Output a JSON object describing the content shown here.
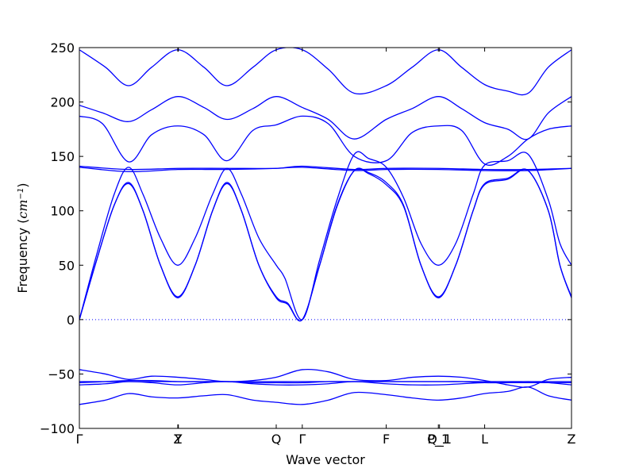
{
  "chart_data": {
    "type": "line",
    "title": "",
    "xlabel": "Wave vector",
    "ylabel": "Frequency ($cm^{-1}$)",
    "ylabel_parts": {
      "prefix": "Frequency (",
      "unit_base": "cm",
      "unit_exp": "−1",
      "suffix": ")"
    },
    "xlim": [
      0,
      8.5
    ],
    "ylim": [
      -100,
      250
    ],
    "grid": false,
    "legend": "none",
    "line_color": "#0000ff",
    "zero_line": {
      "y": 0,
      "style": "dotted"
    },
    "yticks": [
      -100,
      -50,
      0,
      50,
      100,
      150,
      200,
      250
    ],
    "ytick_labels": [
      "−100",
      "−50",
      "0",
      "50",
      "100",
      "150",
      "200",
      "250"
    ],
    "xticks": [
      {
        "x": 0,
        "label": "Γ"
      },
      {
        "x": 1.7,
        "label": "Z"
      },
      {
        "x": 1.71,
        "label": "Y"
      },
      {
        "x": 3.4,
        "label": "Q"
      },
      {
        "x": 3.85,
        "label": "Γ"
      },
      {
        "x": 5.3,
        "label": "F"
      },
      {
        "x": 6.2,
        "label": "P_1"
      },
      {
        "x": 6.22,
        "label": "Q_1"
      },
      {
        "x": 7.0,
        "label": "L"
      },
      {
        "x": 8.5,
        "label": "Z"
      }
    ],
    "series": [
      {
        "values": [
          [
            0,
            248
          ],
          [
            0.45,
            232
          ],
          [
            0.85,
            215
          ],
          [
            1.25,
            232
          ],
          [
            1.7,
            248
          ],
          [
            2.15,
            232
          ],
          [
            2.55,
            215
          ],
          [
            3.0,
            232
          ],
          [
            3.4,
            248
          ],
          [
            3.85,
            248
          ],
          [
            4.3,
            230
          ],
          [
            4.75,
            208
          ],
          [
            5.3,
            215
          ],
          [
            5.75,
            232
          ],
          [
            6.2,
            248
          ],
          [
            6.6,
            232
          ],
          [
            7.0,
            216
          ],
          [
            7.4,
            210
          ],
          [
            7.75,
            208
          ],
          [
            8.1,
            232
          ],
          [
            8.5,
            248
          ]
        ]
      },
      {
        "values": [
          [
            0,
            197
          ],
          [
            0.4,
            190
          ],
          [
            0.85,
            182
          ],
          [
            1.25,
            193
          ],
          [
            1.7,
            205
          ],
          [
            2.15,
            195
          ],
          [
            2.55,
            184
          ],
          [
            3.0,
            194
          ],
          [
            3.4,
            205
          ],
          [
            3.85,
            195
          ],
          [
            4.3,
            184
          ],
          [
            4.75,
            166
          ],
          [
            5.3,
            184
          ],
          [
            5.75,
            194
          ],
          [
            6.2,
            205
          ],
          [
            6.6,
            194
          ],
          [
            7.0,
            181
          ],
          [
            7.4,
            175
          ],
          [
            7.75,
            166
          ],
          [
            8.1,
            190
          ],
          [
            8.5,
            205
          ]
        ]
      },
      {
        "values": [
          [
            0,
            187
          ],
          [
            0.4,
            180
          ],
          [
            0.85,
            145
          ],
          [
            1.25,
            170
          ],
          [
            1.7,
            178
          ],
          [
            2.15,
            170
          ],
          [
            2.55,
            146
          ],
          [
            3.0,
            174
          ],
          [
            3.4,
            179
          ],
          [
            3.85,
            187
          ],
          [
            4.3,
            180
          ],
          [
            4.75,
            150
          ],
          [
            5.3,
            146
          ],
          [
            5.75,
            172
          ],
          [
            6.2,
            178
          ],
          [
            6.6,
            174
          ],
          [
            7.0,
            143
          ],
          [
            7.4,
            150
          ],
          [
            7.75,
            166
          ],
          [
            8.1,
            175
          ],
          [
            8.5,
            178
          ]
        ]
      },
      {
        "values": [
          [
            0,
            141
          ],
          [
            0.85,
            138
          ],
          [
            1.7,
            139
          ],
          [
            2.55,
            139
          ],
          [
            3.4,
            139
          ],
          [
            3.85,
            141
          ],
          [
            4.75,
            138
          ],
          [
            5.3,
            139
          ],
          [
            6.2,
            139
          ],
          [
            7.0,
            138
          ],
          [
            7.75,
            138
          ],
          [
            8.5,
            139
          ]
        ]
      },
      {
        "values": [
          [
            0,
            140
          ],
          [
            0.85,
            136
          ],
          [
            1.7,
            138
          ],
          [
            2.55,
            138
          ],
          [
            3.4,
            139
          ],
          [
            3.85,
            140
          ],
          [
            4.75,
            137
          ],
          [
            5.3,
            138
          ],
          [
            6.2,
            138
          ],
          [
            7.0,
            137
          ],
          [
            7.75,
            137
          ],
          [
            8.5,
            139
          ]
        ]
      },
      {
        "values": [
          [
            0,
            0
          ],
          [
            0.3,
            60
          ],
          [
            0.6,
            115
          ],
          [
            0.85,
            140
          ],
          [
            1.1,
            115
          ],
          [
            1.4,
            75
          ],
          [
            1.7,
            50
          ],
          [
            2.0,
            75
          ],
          [
            2.3,
            115
          ],
          [
            2.55,
            139
          ],
          [
            2.8,
            115
          ],
          [
            3.1,
            75
          ],
          [
            3.4,
            50
          ],
          [
            3.55,
            38
          ],
          [
            3.85,
            0
          ],
          [
            4.15,
            55
          ],
          [
            4.45,
            110
          ],
          [
            4.75,
            152
          ],
          [
            5.0,
            148
          ],
          [
            5.3,
            140
          ],
          [
            5.6,
            112
          ],
          [
            5.9,
            70
          ],
          [
            6.2,
            50
          ],
          [
            6.5,
            70
          ],
          [
            6.8,
            115
          ],
          [
            7.0,
            142
          ],
          [
            7.4,
            146
          ],
          [
            7.75,
            152
          ],
          [
            8.1,
            110
          ],
          [
            8.3,
            70
          ],
          [
            8.5,
            50
          ]
        ]
      },
      {
        "values": [
          [
            0,
            0
          ],
          [
            0.3,
            55
          ],
          [
            0.6,
            105
          ],
          [
            0.85,
            125
          ],
          [
            1.1,
            100
          ],
          [
            1.4,
            50
          ],
          [
            1.7,
            21
          ],
          [
            2.0,
            50
          ],
          [
            2.3,
            100
          ],
          [
            2.55,
            126
          ],
          [
            2.8,
            100
          ],
          [
            3.1,
            50
          ],
          [
            3.4,
            21
          ],
          [
            3.6,
            15
          ],
          [
            3.85,
            0
          ],
          [
            4.15,
            50
          ],
          [
            4.45,
            105
          ],
          [
            4.75,
            137
          ],
          [
            5.0,
            135
          ],
          [
            5.3,
            126
          ],
          [
            5.6,
            105
          ],
          [
            5.9,
            50
          ],
          [
            6.2,
            21
          ],
          [
            6.5,
            50
          ],
          [
            6.8,
            100
          ],
          [
            7.0,
            125
          ],
          [
            7.4,
            130
          ],
          [
            7.75,
            137
          ],
          [
            8.1,
            100
          ],
          [
            8.3,
            50
          ],
          [
            8.5,
            21
          ]
        ]
      },
      {
        "values": [
          [
            0,
            0
          ],
          [
            0.3,
            55
          ],
          [
            0.6,
            105
          ],
          [
            0.85,
            126
          ],
          [
            1.1,
            100
          ],
          [
            1.4,
            50
          ],
          [
            1.7,
            20
          ],
          [
            2.0,
            50
          ],
          [
            2.3,
            100
          ],
          [
            2.55,
            125
          ],
          [
            2.8,
            100
          ],
          [
            3.1,
            50
          ],
          [
            3.4,
            20
          ],
          [
            3.6,
            14
          ],
          [
            3.85,
            0
          ],
          [
            4.15,
            50
          ],
          [
            4.45,
            104
          ],
          [
            4.75,
            137
          ],
          [
            5.0,
            134
          ],
          [
            5.3,
            124
          ],
          [
            5.6,
            104
          ],
          [
            5.9,
            50
          ],
          [
            6.2,
            20
          ],
          [
            6.5,
            50
          ],
          [
            6.8,
            100
          ],
          [
            7.0,
            124
          ],
          [
            7.4,
            129
          ],
          [
            7.75,
            137
          ],
          [
            8.1,
            100
          ],
          [
            8.3,
            50
          ],
          [
            8.5,
            20
          ]
        ]
      },
      {
        "values": [
          [
            0,
            -46
          ],
          [
            0.45,
            -50
          ],
          [
            0.85,
            -55
          ],
          [
            1.25,
            -52
          ],
          [
            1.7,
            -53
          ],
          [
            2.15,
            -55
          ],
          [
            2.55,
            -57
          ],
          [
            3.0,
            -56
          ],
          [
            3.4,
            -53
          ],
          [
            3.85,
            -46
          ],
          [
            4.3,
            -48
          ],
          [
            4.75,
            -55
          ],
          [
            5.3,
            -56
          ],
          [
            5.75,
            -53
          ],
          [
            6.2,
            -52
          ],
          [
            6.6,
            -53
          ],
          [
            7.0,
            -56
          ],
          [
            7.4,
            -60
          ],
          [
            7.75,
            -62
          ],
          [
            8.1,
            -55
          ],
          [
            8.5,
            -53
          ]
        ]
      },
      {
        "values": [
          [
            0,
            -57
          ],
          [
            0.85,
            -57
          ],
          [
            1.7,
            -57
          ],
          [
            2.55,
            -57
          ],
          [
            3.4,
            -57
          ],
          [
            3.85,
            -57
          ],
          [
            4.75,
            -57
          ],
          [
            5.3,
            -57
          ],
          [
            6.2,
            -57
          ],
          [
            7.0,
            -57
          ],
          [
            7.75,
            -57
          ],
          [
            8.5,
            -57
          ]
        ]
      },
      {
        "values": [
          [
            0,
            -58
          ],
          [
            0.45,
            -57
          ],
          [
            0.85,
            -56
          ],
          [
            1.25,
            -56
          ],
          [
            1.7,
            -57
          ],
          [
            2.15,
            -57
          ],
          [
            2.55,
            -57
          ],
          [
            3.0,
            -58
          ],
          [
            3.4,
            -58
          ],
          [
            3.85,
            -58
          ],
          [
            4.3,
            -57
          ],
          [
            4.75,
            -57
          ],
          [
            5.3,
            -57
          ],
          [
            5.75,
            -57
          ],
          [
            6.2,
            -57
          ],
          [
            6.6,
            -57
          ],
          [
            7.0,
            -58
          ],
          [
            7.4,
            -58
          ],
          [
            7.75,
            -58
          ],
          [
            8.1,
            -58
          ],
          [
            8.5,
            -58
          ]
        ]
      },
      {
        "values": [
          [
            0,
            -60
          ],
          [
            0.45,
            -59
          ],
          [
            0.85,
            -57
          ],
          [
            1.25,
            -58
          ],
          [
            1.7,
            -60
          ],
          [
            2.15,
            -58
          ],
          [
            2.55,
            -57
          ],
          [
            3.0,
            -59
          ],
          [
            3.4,
            -60
          ],
          [
            3.85,
            -60
          ],
          [
            4.3,
            -59
          ],
          [
            4.75,
            -57
          ],
          [
            5.3,
            -59
          ],
          [
            5.75,
            -60
          ],
          [
            6.2,
            -60
          ],
          [
            6.6,
            -59
          ],
          [
            7.0,
            -58
          ],
          [
            7.4,
            -58
          ],
          [
            7.75,
            -57
          ],
          [
            8.1,
            -58
          ],
          [
            8.5,
            -60
          ]
        ]
      },
      {
        "values": [
          [
            0,
            -78
          ],
          [
            0.45,
            -74
          ],
          [
            0.85,
            -68
          ],
          [
            1.25,
            -71
          ],
          [
            1.7,
            -72
          ],
          [
            2.15,
            -70
          ],
          [
            2.55,
            -69
          ],
          [
            3.0,
            -74
          ],
          [
            3.4,
            -76
          ],
          [
            3.85,
            -78
          ],
          [
            4.3,
            -74
          ],
          [
            4.75,
            -67
          ],
          [
            5.3,
            -69
          ],
          [
            5.75,
            -72
          ],
          [
            6.2,
            -74
          ],
          [
            6.6,
            -72
          ],
          [
            7.0,
            -68
          ],
          [
            7.4,
            -66
          ],
          [
            7.75,
            -62
          ],
          [
            8.1,
            -70
          ],
          [
            8.5,
            -74
          ]
        ]
      }
    ]
  }
}
